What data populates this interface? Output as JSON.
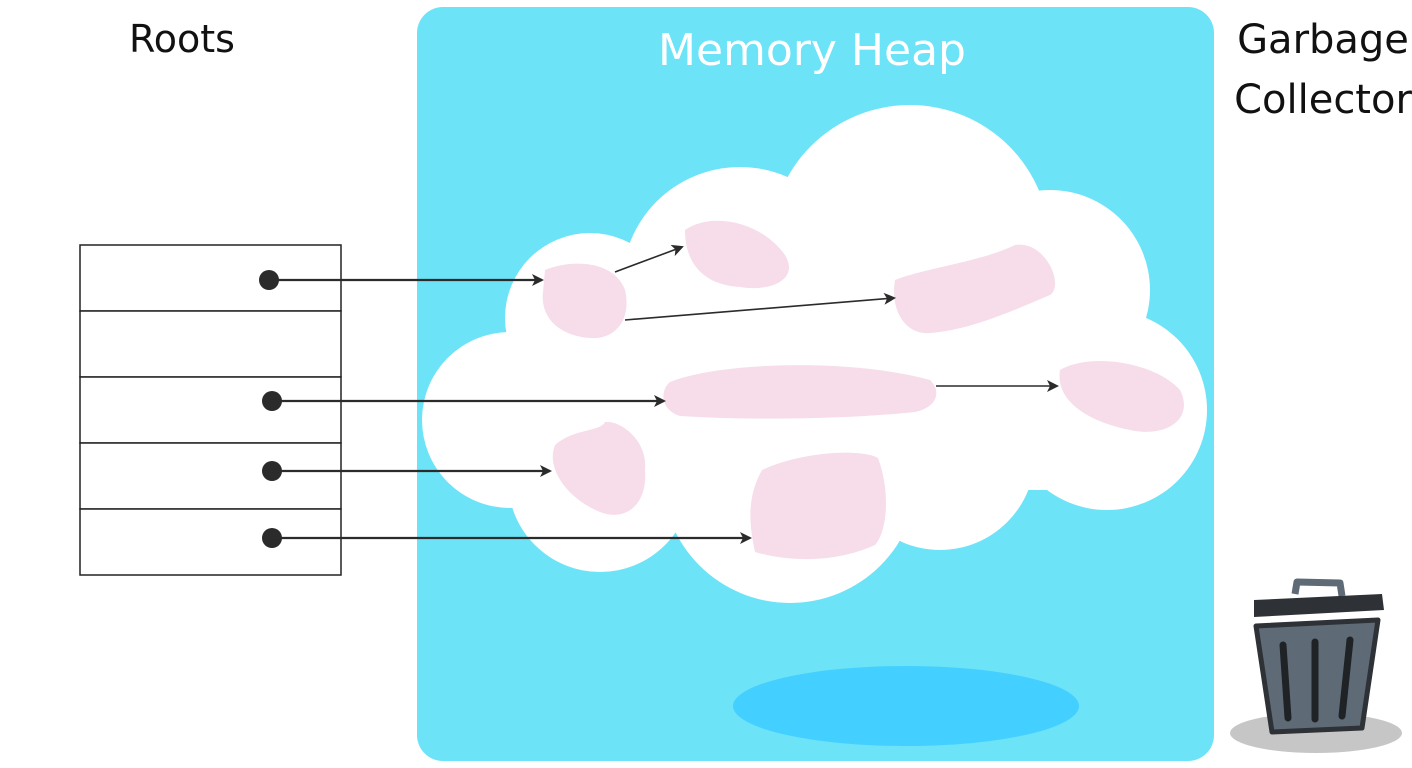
{
  "labels": {
    "roots": "Roots",
    "memory_heap": "Memory Heap",
    "garbage_collector_line1": "Garbage",
    "garbage_collector_line2": "Collector"
  },
  "roots_table": {
    "slots": [
      {
        "has_reference": true
      },
      {
        "has_reference": false
      },
      {
        "has_reference": true
      },
      {
        "has_reference": true
      },
      {
        "has_reference": true
      }
    ]
  },
  "heap_objects": [
    {
      "id": "obj-a",
      "reachable": true
    },
    {
      "id": "obj-b",
      "reachable": true
    },
    {
      "id": "obj-c",
      "reachable": true
    },
    {
      "id": "obj-d",
      "reachable": true
    },
    {
      "id": "obj-e",
      "reachable": true
    },
    {
      "id": "obj-f",
      "reachable": true
    },
    {
      "id": "obj-g",
      "reachable": true
    }
  ],
  "references": [
    {
      "from": "root-slot-1",
      "to": "obj-a"
    },
    {
      "from": "obj-a",
      "to": "obj-b"
    },
    {
      "from": "obj-a",
      "to": "obj-c"
    },
    {
      "from": "root-slot-3",
      "to": "obj-d"
    },
    {
      "from": "obj-d",
      "to": "obj-e"
    },
    {
      "from": "root-slot-4",
      "to": "obj-f"
    },
    {
      "from": "root-slot-5",
      "to": "obj-g"
    }
  ],
  "colors": {
    "heap_panel": "#6ce3f7",
    "heap_shadow": "#43cfff",
    "cloud": "#ffffff",
    "cloud_shade": "#5fd6ee",
    "object": "#f6dde9",
    "ink": "#2b2b2b",
    "trash_body": "#5e6b76",
    "trash_lid": "#2e3236",
    "trash_shadow": "#c6c6c6"
  },
  "icons": {
    "garbage_collector": "trash-can-icon"
  }
}
